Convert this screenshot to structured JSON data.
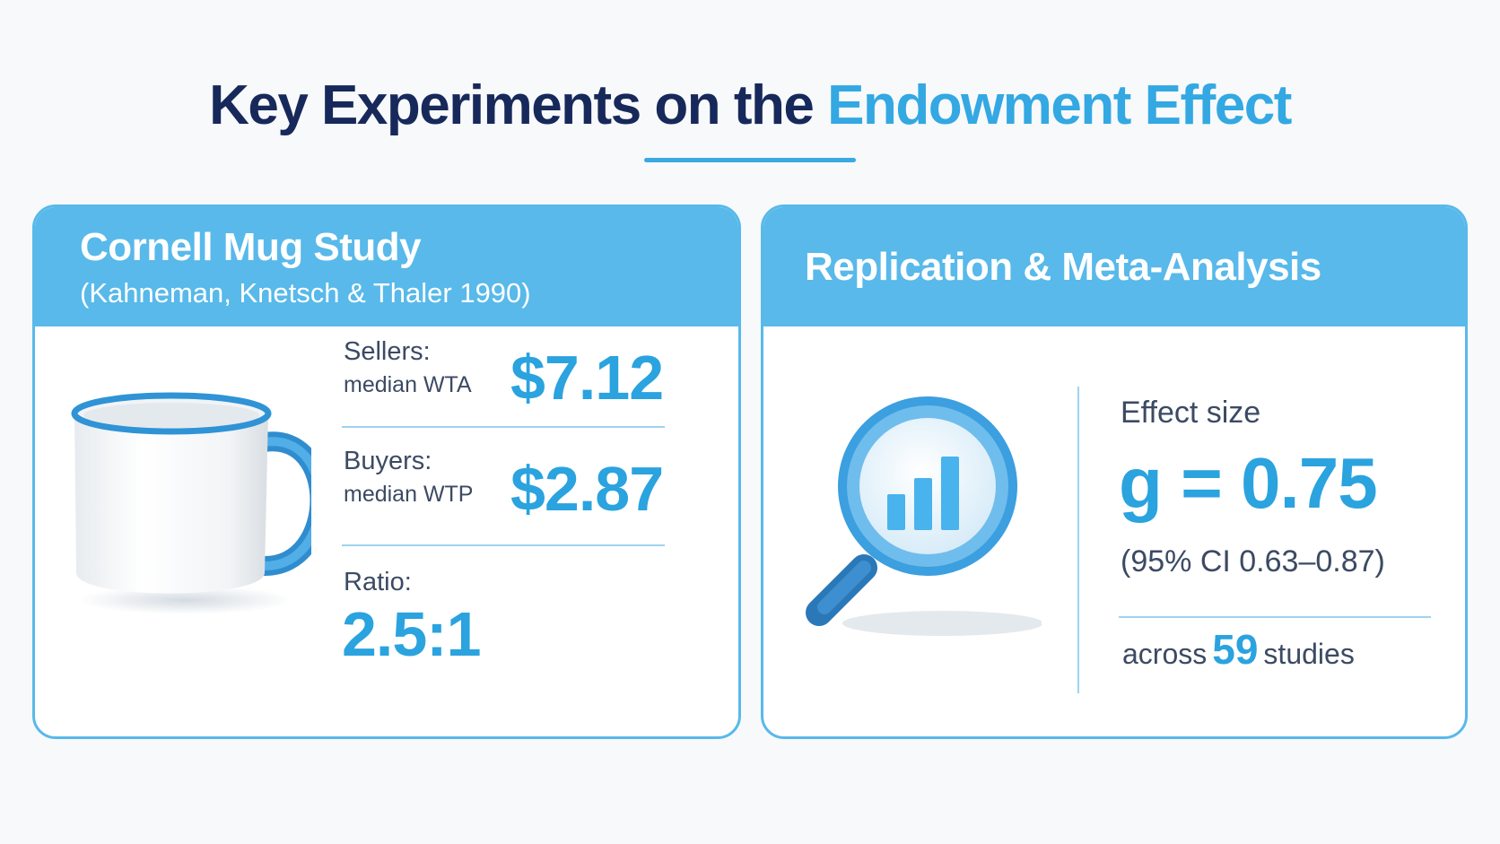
{
  "header": {
    "title_main": "Key Experiments on the ",
    "title_highlight": "Endowment Effect"
  },
  "left_card": {
    "title": "Cornell Mug Study",
    "subtitle": "(Kahneman, Knetsch & Thaler 1990)",
    "image_icon": "mug-icon",
    "sellers": {
      "label": "Sellers:",
      "sublabel": "median WTA",
      "value": "$7.12"
    },
    "buyers": {
      "label": "Buyers:",
      "sublabel": "median WTP",
      "value": "$2.87"
    },
    "ratio": {
      "label": "Ratio:",
      "value": "2.5:1"
    }
  },
  "right_card": {
    "title": "Replication & Meta-Analysis",
    "image_icon": "magnifier-chart-icon",
    "effect_label": "Effect size",
    "effect_value": "g = 0.75",
    "ci": "(95% CI 0.63–0.87)",
    "across_prefix": "across",
    "study_count": "59",
    "across_suffix": "studies"
  },
  "colors": {
    "navy": "#17295a",
    "accent": "#33a8e2",
    "card_header": "#58b9ea",
    "text": "#3c4a63"
  }
}
